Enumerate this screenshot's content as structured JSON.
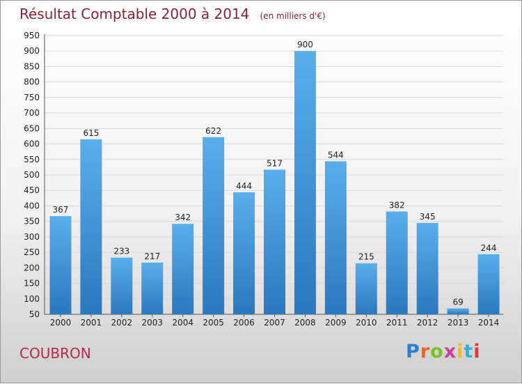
{
  "chart_data": {
    "type": "bar",
    "title": "Résultat Comptable 2000 à 2014",
    "subtitle": "(en milliers d'€)",
    "categories": [
      "2000",
      "2001",
      "2002",
      "2003",
      "2004",
      "2005",
      "2006",
      "2007",
      "2008",
      "2009",
      "2010",
      "2011",
      "2012",
      "2013",
      "2014"
    ],
    "values": [
      367,
      615,
      233,
      217,
      342,
      622,
      444,
      517,
      900,
      544,
      215,
      382,
      345,
      69,
      244
    ],
    "ylim": [
      50,
      950
    ],
    "yticks": [
      50,
      100,
      150,
      200,
      250,
      300,
      350,
      400,
      450,
      500,
      550,
      600,
      650,
      700,
      750,
      800,
      850,
      900,
      950
    ],
    "grid": true,
    "bar_color_top": "#5aaeea",
    "bar_color_bottom": "#2a78bf"
  },
  "commune": "COUBRON",
  "logo": {
    "text": "Proxiti",
    "letter_colors": [
      "#2a7fd0",
      "#e2652a",
      "#7bbf2a",
      "#d63aa0",
      "#f0b82a",
      "#2fb0d8",
      "#e23a3a"
    ]
  }
}
